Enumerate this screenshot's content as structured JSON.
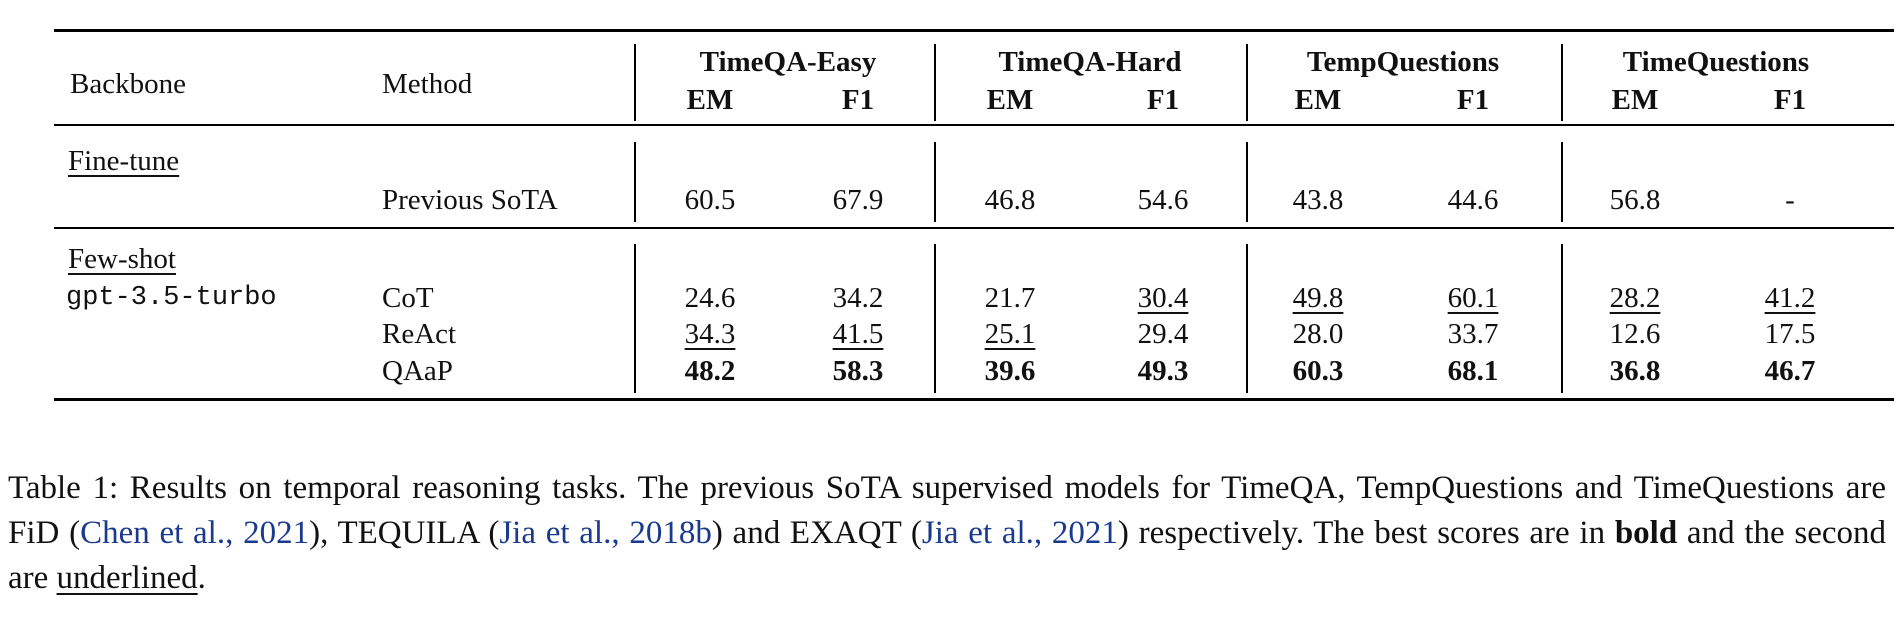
{
  "header": {
    "backbone": "Backbone",
    "method": "Method",
    "groups": [
      {
        "name": "TimeQA-Easy",
        "em": "EM",
        "f1": "F1"
      },
      {
        "name": "TimeQA-Hard",
        "em": "EM",
        "f1": "F1"
      },
      {
        "name": "TempQuestions",
        "em": "EM",
        "f1": "F1"
      },
      {
        "name": "TimeQuestions",
        "em": "EM",
        "f1": "F1"
      }
    ]
  },
  "sections": {
    "finetune": {
      "label": "Fine-tune",
      "rows": [
        {
          "method": "Previous SoTA",
          "values": [
            "60.5",
            "67.9",
            "46.8",
            "54.6",
            "43.8",
            "44.6",
            "56.8",
            "-"
          ]
        }
      ]
    },
    "fewshot": {
      "label": "Few-shot",
      "backbone": "gpt-3.5-turbo",
      "rows": [
        {
          "method": "CoT",
          "values": [
            "24.6",
            "34.2",
            "21.7",
            "30.4",
            "49.8",
            "60.1",
            "28.2",
            "41.2"
          ]
        },
        {
          "method": "ReAct",
          "values": [
            "34.3",
            "41.5",
            "25.1",
            "29.4",
            "28.0",
            "33.7",
            "12.6",
            "17.5"
          ]
        },
        {
          "method": "QAaP",
          "values": [
            "48.2",
            "58.3",
            "39.6",
            "49.3",
            "60.3",
            "68.1",
            "36.8",
            "46.7"
          ]
        }
      ]
    }
  },
  "caption": {
    "p1": "Table 1: Results on temporal reasoning tasks. The previous SoTA supervised models for TimeQA, TempQuestions and TimeQuestions are FiD (",
    "c1": "Chen et al., 2021",
    "p2": "), TEQUILA (",
    "c2": "Jia et al., 2018b",
    "p3": ") and EXAQT (",
    "c3": "Jia et al., 2021",
    "p4": ") respectively. The best scores are in ",
    "bold": "bold",
    "p5": " and the second are ",
    "underlined": "underlined",
    "p6": "."
  }
}
